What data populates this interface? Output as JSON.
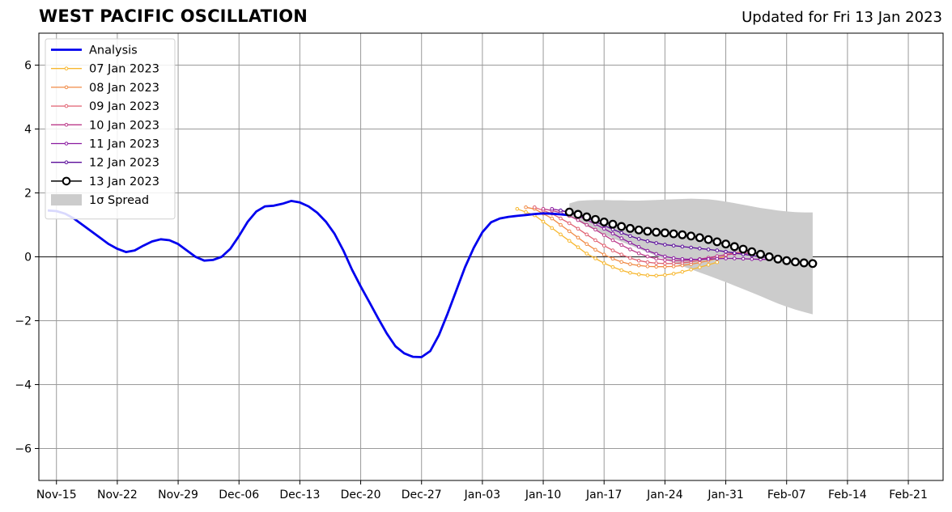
{
  "header": {
    "title": "WEST PACIFIC OSCILLATION",
    "updated": "Updated for Fri 13 Jan 2023"
  },
  "chart_data": {
    "type": "line",
    "title": "WEST PACIFIC OSCILLATION",
    "xlabel": "",
    "ylabel": "",
    "x_origin": "2022-11-14",
    "xlim": [
      "2022-11-14",
      "2023-02-25"
    ],
    "ylim": [
      -7,
      7
    ],
    "grid": true,
    "legend_position": "top-left",
    "x_ticks": [
      {
        "date": "2022-11-15",
        "label": "Nov-15"
      },
      {
        "date": "2022-11-22",
        "label": "Nov-22"
      },
      {
        "date": "2022-11-29",
        "label": "Nov-29"
      },
      {
        "date": "2022-12-06",
        "label": "Dec-06"
      },
      {
        "date": "2022-12-13",
        "label": "Dec-13"
      },
      {
        "date": "2022-12-20",
        "label": "Dec-20"
      },
      {
        "date": "2022-12-27",
        "label": "Dec-27"
      },
      {
        "date": "2023-01-03",
        "label": "Jan-03"
      },
      {
        "date": "2023-01-10",
        "label": "Jan-10"
      },
      {
        "date": "2023-01-17",
        "label": "Jan-17"
      },
      {
        "date": "2023-01-24",
        "label": "Jan-24"
      },
      {
        "date": "2023-01-31",
        "label": "Jan-31"
      },
      {
        "date": "2023-02-07",
        "label": "Feb-07"
      },
      {
        "date": "2023-02-14",
        "label": "Feb-14"
      },
      {
        "date": "2023-02-21",
        "label": "Feb-21"
      }
    ],
    "y_ticks": [
      {
        "value": 6,
        "label": "6"
      },
      {
        "value": 4,
        "label": "4"
      },
      {
        "value": 2,
        "label": "2"
      },
      {
        "value": 0,
        "label": "0"
      },
      {
        "value": -2,
        "label": "−2"
      },
      {
        "value": -4,
        "label": "−4"
      },
      {
        "value": -6,
        "label": "−6"
      }
    ],
    "analysis": {
      "name": "Analysis",
      "color": "#0000ee",
      "start": "2022-11-14",
      "values": [
        1.45,
        1.43,
        1.35,
        1.2,
        1.0,
        0.8,
        0.6,
        0.4,
        0.25,
        0.15,
        0.2,
        0.35,
        0.48,
        0.55,
        0.52,
        0.4,
        0.2,
        0.0,
        -0.12,
        -0.1,
        0.0,
        0.25,
        0.65,
        1.1,
        1.42,
        1.58,
        1.6,
        1.66,
        1.75,
        1.7,
        1.58,
        1.38,
        1.1,
        0.72,
        0.2,
        -0.4,
        -0.93,
        -1.42,
        -1.92,
        -2.4,
        -2.8,
        -3.02,
        -3.13,
        -3.14,
        -2.95,
        -2.45,
        -1.78,
        -1.05,
        -0.33,
        0.28,
        0.77,
        1.08,
        1.2,
        1.25,
        1.28,
        1.31,
        1.34,
        1.36,
        1.35,
        1.33,
        1.3
      ]
    },
    "forecasts": [
      {
        "name": "07 Jan 2023",
        "color": "#f7b72f",
        "start": "2023-01-07",
        "values": [
          1.5,
          1.4,
          1.3,
          1.1,
          0.9,
          0.7,
          0.5,
          0.3,
          0.1,
          -0.05,
          -0.2,
          -0.32,
          -0.42,
          -0.5,
          -0.55,
          -0.58,
          -0.59,
          -0.57,
          -0.53,
          -0.47,
          -0.4,
          -0.33,
          -0.25,
          -0.17
        ]
      },
      {
        "name": "08 Jan 2023",
        "color": "#f08a45",
        "start": "2023-01-08",
        "values": [
          1.55,
          1.5,
          1.35,
          1.2,
          1.0,
          0.8,
          0.6,
          0.4,
          0.22,
          0.07,
          -0.06,
          -0.16,
          -0.23,
          -0.27,
          -0.3,
          -0.31,
          -0.31,
          -0.3,
          -0.27,
          -0.23,
          -0.18,
          -0.12,
          -0.05,
          0.02
        ]
      },
      {
        "name": "09 Jan 2023",
        "color": "#e06070",
        "start": "2023-01-09",
        "values": [
          1.55,
          1.45,
          1.35,
          1.2,
          1.05,
          0.88,
          0.7,
          0.52,
          0.35,
          0.2,
          0.07,
          -0.04,
          -0.12,
          -0.17,
          -0.2,
          -0.21,
          -0.21,
          -0.19,
          -0.16,
          -0.11,
          -0.05,
          0.01,
          0.07,
          0.12,
          0.16,
          0.18
        ]
      },
      {
        "name": "10 Jan 2023",
        "color": "#bb3a8a",
        "start": "2023-01-10",
        "values": [
          1.5,
          1.45,
          1.38,
          1.28,
          1.15,
          1.0,
          0.85,
          0.68,
          0.52,
          0.37,
          0.23,
          0.11,
          0.01,
          -0.06,
          -0.1,
          -0.12,
          -0.12,
          -0.1,
          -0.07,
          -0.03,
          0.02,
          0.06,
          0.09,
          0.11,
          0.11,
          0.09
        ]
      },
      {
        "name": "11 Jan 2023",
        "color": "#8a1aa0",
        "start": "2023-01-11",
        "values": [
          1.5,
          1.45,
          1.38,
          1.28,
          1.16,
          1.02,
          0.88,
          0.73,
          0.58,
          0.44,
          0.31,
          0.19,
          0.09,
          0.01,
          -0.04,
          -0.07,
          -0.08,
          -0.08,
          -0.07,
          -0.06,
          -0.05,
          -0.05,
          -0.06,
          -0.07,
          -0.08,
          -0.08
        ]
      },
      {
        "name": "12 Jan 2023",
        "color": "#5a0c9a",
        "start": "2023-01-12",
        "values": [
          1.45,
          1.4,
          1.32,
          1.22,
          1.1,
          0.98,
          0.86,
          0.75,
          0.65,
          0.56,
          0.49,
          0.43,
          0.38,
          0.35,
          0.32,
          0.29,
          0.26,
          0.23,
          0.2,
          0.16,
          0.12,
          0.08,
          0.04,
          0.0,
          -0.03,
          -0.05
        ]
      }
    ],
    "current_forecast": {
      "name": "13 Jan 2023",
      "color": "#000000",
      "start": "2023-01-13",
      "values": [
        1.4,
        1.33,
        1.25,
        1.17,
        1.09,
        1.02,
        0.95,
        0.89,
        0.84,
        0.8,
        0.77,
        0.75,
        0.72,
        0.69,
        0.65,
        0.6,
        0.54,
        0.47,
        0.4,
        0.32,
        0.24,
        0.16,
        0.08,
        0.0,
        -0.07,
        -0.12,
        -0.16,
        -0.19,
        -0.21
      ]
    },
    "spread": {
      "name": "1σ Spread",
      "color": "#cccccc",
      "start": "2023-01-13",
      "upper": [
        1.67,
        1.75,
        1.77,
        1.78,
        1.78,
        1.77,
        1.77,
        1.76,
        1.76,
        1.77,
        1.78,
        1.79,
        1.8,
        1.81,
        1.82,
        1.81,
        1.8,
        1.77,
        1.73,
        1.68,
        1.63,
        1.58,
        1.53,
        1.49,
        1.45,
        1.42,
        1.4,
        1.39,
        1.39
      ],
      "lower": [
        1.3,
        1.12,
        0.97,
        0.83,
        0.7,
        0.58,
        0.47,
        0.36,
        0.25,
        0.14,
        0.03,
        -0.08,
        -0.19,
        -0.29,
        -0.39,
        -0.49,
        -0.59,
        -0.69,
        -0.79,
        -0.9,
        -1.01,
        -1.12,
        -1.23,
        -1.35,
        -1.46,
        -1.56,
        -1.65,
        -1.73,
        -1.8
      ]
    },
    "legend": [
      {
        "label": "Analysis",
        "kind": "line",
        "color": "#0000ee"
      },
      {
        "label": "07 Jan 2023",
        "kind": "dotline",
        "color": "#f7b72f"
      },
      {
        "label": "08 Jan 2023",
        "kind": "dotline",
        "color": "#f08a45"
      },
      {
        "label": "09 Jan 2023",
        "kind": "dotline",
        "color": "#e06070"
      },
      {
        "label": "10 Jan 2023",
        "kind": "dotline",
        "color": "#bb3a8a"
      },
      {
        "label": "11 Jan 2023",
        "kind": "dotline",
        "color": "#8a1aa0"
      },
      {
        "label": "12 Jan 2023",
        "kind": "dotline",
        "color": "#5a0c9a"
      },
      {
        "label": "13 Jan 2023",
        "kind": "circleline",
        "color": "#000000"
      },
      {
        "label": "1σ Spread",
        "kind": "patch",
        "color": "#cccccc"
      }
    ]
  }
}
